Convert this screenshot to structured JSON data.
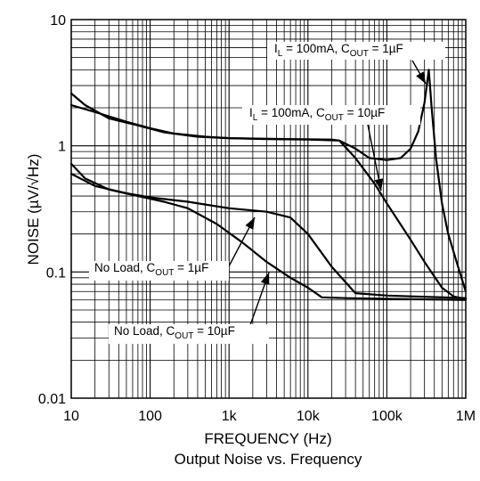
{
  "chart_data": {
    "type": "line",
    "title": "Output Noise vs. Frequency",
    "xlabel": "FREQUENCY (Hz)",
    "ylabel": "NOISE (µV/√Hz)",
    "x_scale": "log",
    "y_scale": "log",
    "xlim": [
      10,
      1000000
    ],
    "ylim": [
      0.01,
      10
    ],
    "grid": true,
    "x_ticks": [
      {
        "value": 10,
        "label": "10"
      },
      {
        "value": 100,
        "label": "100"
      },
      {
        "value": 1000,
        "label": "1k"
      },
      {
        "value": 10000,
        "label": "10k"
      },
      {
        "value": 100000,
        "label": "100k"
      },
      {
        "value": 1000000,
        "label": "1M"
      }
    ],
    "y_ticks": [
      {
        "value": 0.01,
        "label": "0.01"
      },
      {
        "value": 0.1,
        "label": "0.1"
      },
      {
        "value": 1,
        "label": "1"
      },
      {
        "value": 10,
        "label": "10"
      }
    ],
    "series": [
      {
        "name": "IL = 100mA, COUT = 1µF",
        "annotation": {
          "main1": "I",
          "sub1": "L",
          "main2": " = 100mA, C",
          "sub2": "OUT",
          "main3": " = 1µF"
        },
        "points": [
          [
            10,
            2.1
          ],
          [
            20,
            1.85
          ],
          [
            50,
            1.55
          ],
          [
            100,
            1.38
          ],
          [
            200,
            1.25
          ],
          [
            500,
            1.18
          ],
          [
            1000,
            1.15
          ],
          [
            3000,
            1.13
          ],
          [
            10000,
            1.12
          ],
          [
            25000,
            1.1
          ],
          [
            40000,
            0.95
          ],
          [
            60000,
            0.8
          ],
          [
            100000,
            0.77
          ],
          [
            150000,
            0.8
          ],
          [
            200000,
            0.95
          ],
          [
            250000,
            1.3
          ],
          [
            300000,
            2.2
          ],
          [
            340000,
            4.0
          ],
          [
            370000,
            2.0
          ],
          [
            420000,
            0.8
          ],
          [
            500000,
            0.35
          ],
          [
            600000,
            0.2
          ],
          [
            800000,
            0.11
          ],
          [
            1000000,
            0.07
          ]
        ]
      },
      {
        "name": "IL = 100mA, COUT = 10µF",
        "annotation": {
          "main1": "I",
          "sub1": "L",
          "main2": " = 100mA, C",
          "sub2": "OUT",
          "main3": " = 10µF"
        },
        "points": [
          [
            10,
            2.6
          ],
          [
            15,
            2.1
          ],
          [
            30,
            1.65
          ],
          [
            70,
            1.45
          ],
          [
            150,
            1.28
          ],
          [
            400,
            1.18
          ],
          [
            1000,
            1.15
          ],
          [
            5000,
            1.13
          ],
          [
            20000,
            1.12
          ],
          [
            25000,
            1.1
          ],
          [
            40000,
            0.8
          ],
          [
            70000,
            0.5
          ],
          [
            100000,
            0.35
          ],
          [
            200000,
            0.18
          ],
          [
            300000,
            0.12
          ],
          [
            500000,
            0.075
          ],
          [
            700000,
            0.064
          ],
          [
            1000000,
            0.061
          ]
        ]
      },
      {
        "name": "No Load, COUT = 1µF",
        "annotation": {
          "main1": "No Load, C",
          "sub1": "OUT",
          "main2": " = 1µF",
          "sub2": "",
          "main3": ""
        },
        "points": [
          [
            10,
            0.6
          ],
          [
            20,
            0.48
          ],
          [
            50,
            0.42
          ],
          [
            100,
            0.39
          ],
          [
            300,
            0.36
          ],
          [
            1000,
            0.32
          ],
          [
            3000,
            0.3
          ],
          [
            6000,
            0.27
          ],
          [
            10000,
            0.2
          ],
          [
            20000,
            0.11
          ],
          [
            40000,
            0.068
          ],
          [
            100000,
            0.065
          ],
          [
            1000000,
            0.062
          ]
        ]
      },
      {
        "name": "No Load, COUT = 10µF",
        "annotation": {
          "main1": "No Load, C",
          "sub1": "OUT",
          "main2": " = 10µF",
          "sub2": "",
          "main3": ""
        },
        "points": [
          [
            10,
            0.72
          ],
          [
            15,
            0.55
          ],
          [
            30,
            0.45
          ],
          [
            70,
            0.4
          ],
          [
            150,
            0.36
          ],
          [
            300,
            0.32
          ],
          [
            700,
            0.24
          ],
          [
            1500,
            0.17
          ],
          [
            3000,
            0.12
          ],
          [
            6000,
            0.09
          ],
          [
            10000,
            0.075
          ],
          [
            15000,
            0.063
          ],
          [
            30000,
            0.062
          ],
          [
            1000000,
            0.06
          ]
        ]
      }
    ]
  }
}
